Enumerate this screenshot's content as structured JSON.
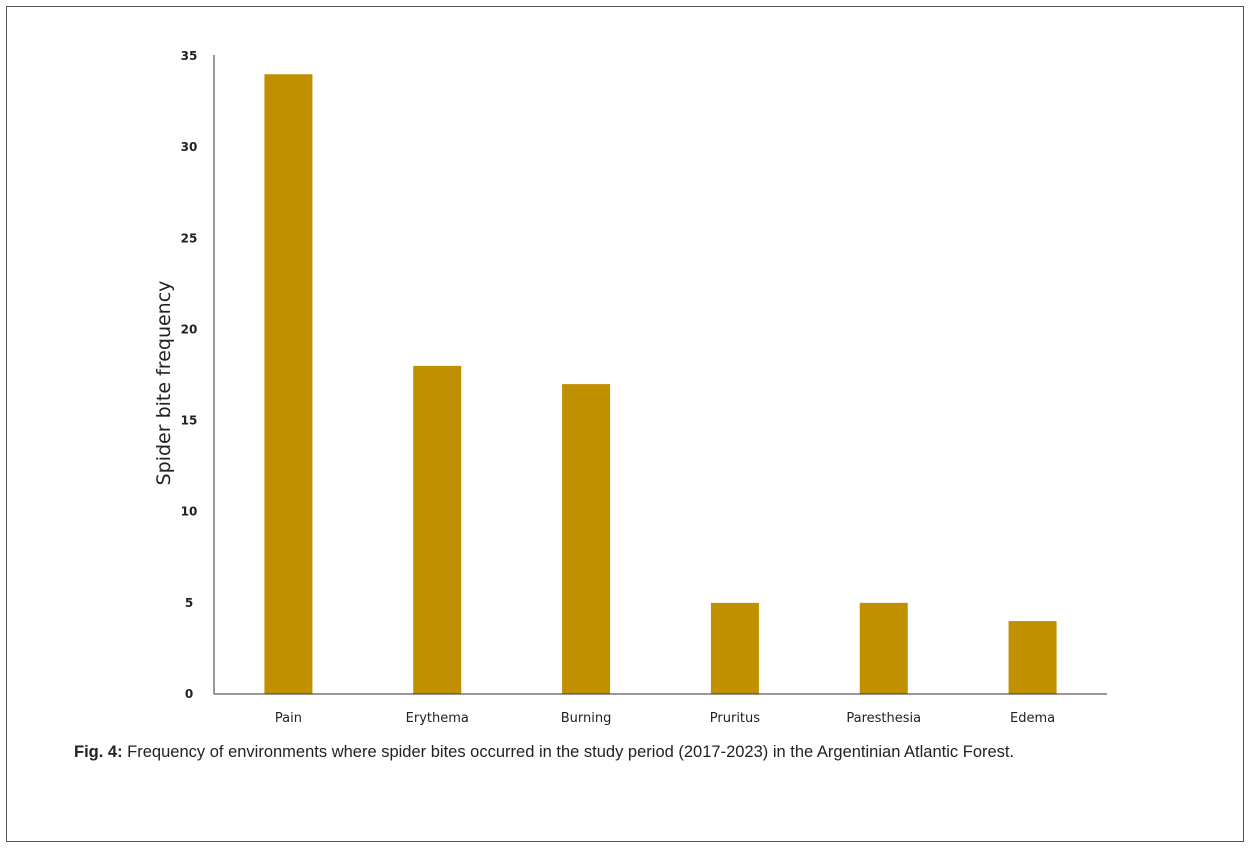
{
  "chart_data": {
    "type": "bar",
    "categories": [
      "Pain",
      "Erythema",
      "Burning",
      "Pruritus",
      "Paresthesia",
      "Edema"
    ],
    "values": [
      34,
      18,
      17,
      5,
      5,
      4
    ],
    "title": "",
    "xlabel": "",
    "ylabel": "Spider bite frequency",
    "ylim": [
      0,
      35
    ],
    "yticks": [
      0,
      5,
      10,
      15,
      20,
      25,
      30,
      35
    ],
    "grid": false,
    "legend": "none",
    "bar_color": "#C09000"
  },
  "caption": {
    "label": "Fig. 4:",
    "text": " Frequency of environments where spider bites occurred in the study period (2017-2023) in the Argentinian Atlantic Forest."
  }
}
